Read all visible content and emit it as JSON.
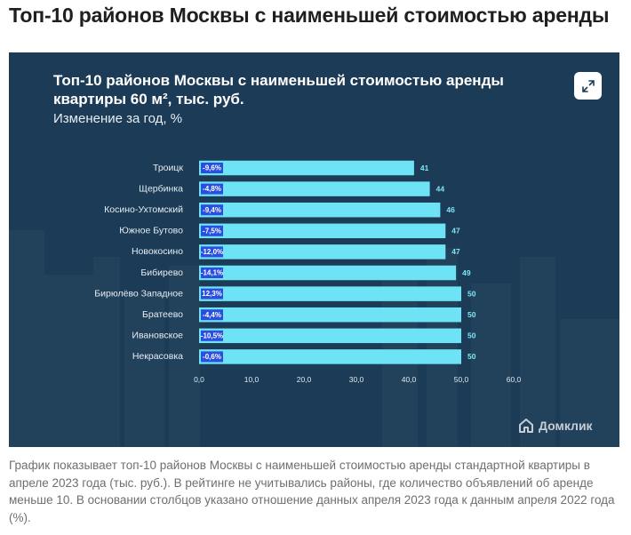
{
  "page": {
    "title": "Топ-10 районов Москвы с наименьшей стоимостью аренды",
    "caption": "График показывает топ-10 районов Москвы с наименьшей стоимостью аренды стандартной квартиры в апреле 2023 года (тыс. руб.). В рейтинге не учитывались районы, где количество объявлений об аренде меньше 10. В основании столбцов указано отношение данных апреля 2023 года к данным апреля 2022 года (%)."
  },
  "card": {
    "title": "Топ-10 районов Москвы с наименьшей стоимостью аренды квартиры 60 м², тыс. руб.",
    "subtitle": "Изменение за год, %",
    "logo_text": "Домклик",
    "expand_icon": "expand-icon"
  },
  "colors": {
    "background": "#1b3b56",
    "bar": "#6ee3f5",
    "badge": "#2a4fe0",
    "value_label": "#7fe6f5",
    "axis_label": "#dfe8ef"
  },
  "chart_data": {
    "type": "bar",
    "orientation": "horizontal",
    "categories": [
      "Троицк",
      "Щербинка",
      "Косино-Ухтомский",
      "Южное Бутово",
      "Новокосино",
      "Бибирево",
      "Бирюлёво Западное",
      "Братеево",
      "Ивановское",
      "Некрасовка"
    ],
    "values": [
      41,
      44,
      46,
      47,
      47,
      49,
      50,
      50,
      50,
      50
    ],
    "value_labels": [
      "41",
      "44",
      "46",
      "47",
      "47",
      "49",
      "50",
      "50",
      "50",
      "50"
    ],
    "change_labels": [
      "-9,6%",
      "-4,8%",
      "-9,4%",
      "-7,5%",
      "-12,0%",
      "-14,1%",
      "12,3%",
      "-4,4%",
      "-10,5%",
      "-0,6%"
    ],
    "x_ticks": [
      "0,0",
      "10,0",
      "20,0",
      "30,0",
      "40,0",
      "50,0",
      "60,0"
    ],
    "xlim": [
      0,
      60
    ],
    "grid": false
  }
}
